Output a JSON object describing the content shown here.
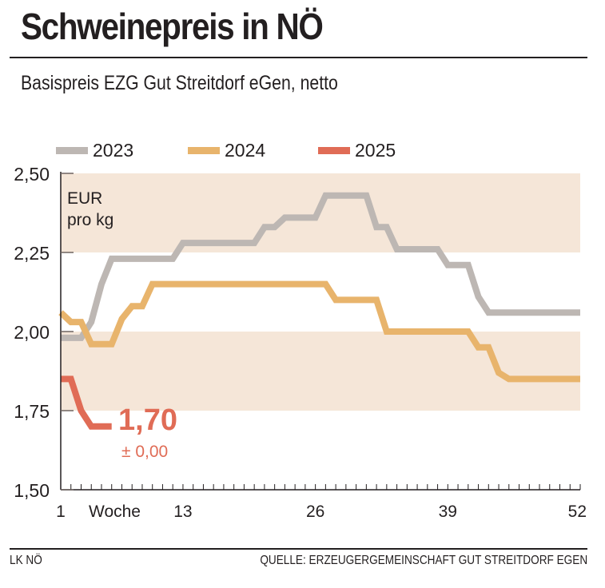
{
  "chart_data": {
    "type": "line",
    "title": "Schweinepreis in NÖ",
    "subtitle": "Basispreis EZG Gut Streitdorf eGen, netto",
    "unit_label_line1": "EUR",
    "unit_label_line2": "pro kg",
    "xlabel": "Woche",
    "xlim": [
      1,
      52
    ],
    "ylim": [
      1.5,
      2.5
    ],
    "x_ticks": [
      1,
      13,
      26,
      39,
      52
    ],
    "x_tick_labels": [
      "1",
      "13",
      "26",
      "39",
      "52"
    ],
    "y_ticks": [
      1.5,
      1.75,
      2.0,
      2.25,
      2.5
    ],
    "y_tick_labels": [
      "1,50",
      "1,75",
      "2,00",
      "2,25",
      "2,50"
    ],
    "bands": [
      [
        1.75,
        2.0
      ],
      [
        2.25,
        2.5
      ]
    ],
    "legend_position": "top",
    "series": [
      {
        "name": "2023",
        "color": "#bdb7b3",
        "x": [
          1,
          2,
          3,
          4,
          5,
          6,
          7,
          8,
          9,
          10,
          11,
          12,
          13,
          14,
          15,
          16,
          17,
          18,
          19,
          20,
          21,
          22,
          23,
          24,
          25,
          26,
          27,
          28,
          29,
          30,
          31,
          32,
          33,
          34,
          35,
          36,
          37,
          38,
          39,
          40,
          41,
          42,
          43,
          44,
          45,
          46,
          47,
          48,
          49,
          50,
          51,
          52
        ],
        "values": [
          1.98,
          1.98,
          1.98,
          2.03,
          2.15,
          2.23,
          2.23,
          2.23,
          2.23,
          2.23,
          2.23,
          2.23,
          2.28,
          2.28,
          2.28,
          2.28,
          2.28,
          2.28,
          2.28,
          2.28,
          2.33,
          2.33,
          2.36,
          2.36,
          2.36,
          2.36,
          2.43,
          2.43,
          2.43,
          2.43,
          2.43,
          2.33,
          2.33,
          2.26,
          2.26,
          2.26,
          2.26,
          2.26,
          2.21,
          2.21,
          2.21,
          2.11,
          2.06,
          2.06,
          2.06,
          2.06,
          2.06,
          2.06,
          2.06,
          2.06,
          2.06,
          2.06
        ]
      },
      {
        "name": "2024",
        "color": "#e8b46c",
        "x": [
          1,
          2,
          3,
          4,
          5,
          6,
          7,
          8,
          9,
          10,
          11,
          12,
          13,
          14,
          15,
          16,
          17,
          18,
          19,
          20,
          21,
          22,
          23,
          24,
          25,
          26,
          27,
          28,
          29,
          30,
          31,
          32,
          33,
          34,
          35,
          36,
          37,
          38,
          39,
          40,
          41,
          42,
          43,
          44,
          45,
          46,
          47,
          48,
          49,
          50,
          51,
          52
        ],
        "values": [
          2.06,
          2.03,
          2.03,
          1.96,
          1.96,
          1.96,
          2.04,
          2.08,
          2.08,
          2.15,
          2.15,
          2.15,
          2.15,
          2.15,
          2.15,
          2.15,
          2.15,
          2.15,
          2.15,
          2.15,
          2.15,
          2.15,
          2.15,
          2.15,
          2.15,
          2.15,
          2.15,
          2.1,
          2.1,
          2.1,
          2.1,
          2.1,
          2.0,
          2.0,
          2.0,
          2.0,
          2.0,
          2.0,
          2.0,
          2.0,
          2.0,
          1.95,
          1.95,
          1.87,
          1.85,
          1.85,
          1.85,
          1.85,
          1.85,
          1.85,
          1.85,
          1.85
        ]
      },
      {
        "name": "2025",
        "color": "#e06c56",
        "x": [
          1,
          2,
          3,
          4,
          5,
          6
        ],
        "values": [
          1.85,
          1.85,
          1.75,
          1.7,
          1.7,
          1.7
        ]
      }
    ],
    "annotation": {
      "value": "1,70",
      "change": "± 0,00",
      "color": "#e06c56"
    }
  },
  "footer": {
    "left": "LK NÖ",
    "right": "QUELLE: ERZEUGERGEMEINSCHAFT GUT STREITDORF EGEN"
  },
  "colors": {
    "band": "#f5e6d8",
    "axis": "#231f20"
  }
}
